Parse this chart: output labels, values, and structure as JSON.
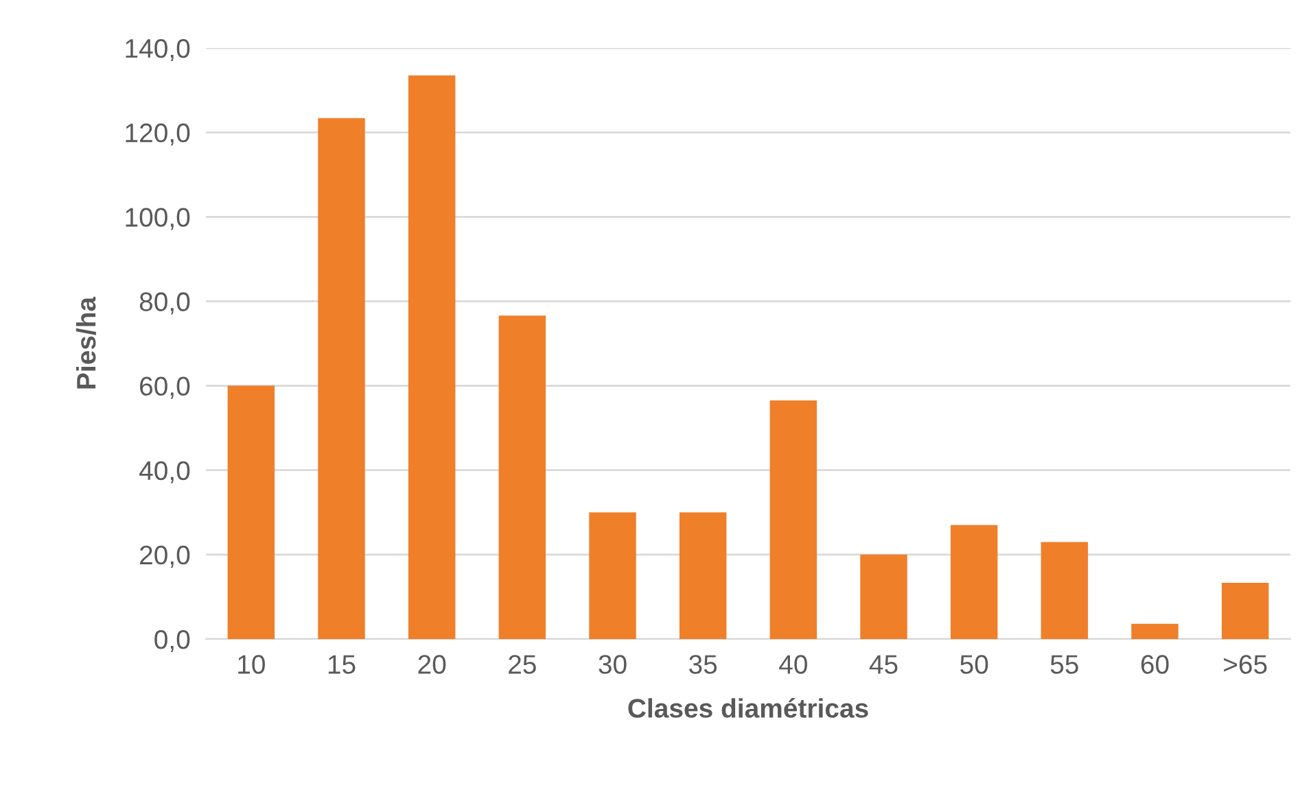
{
  "chart_data": {
    "type": "bar",
    "xlabel": "Clases diamétricas",
    "ylabel": "Pies/ha",
    "categories": [
      "10",
      "15",
      "20",
      "25",
      "30",
      "35",
      "40",
      "45",
      "50",
      "55",
      "60",
      ">65"
    ],
    "values": [
      60,
      123.4,
      133.5,
      76.6,
      30,
      30,
      56.5,
      20,
      27,
      23,
      3.6,
      13.3
    ],
    "color": "#f07f2a",
    "ylim": [
      0,
      140
    ],
    "yticks": [
      {
        "value": 0,
        "label": "0,0"
      },
      {
        "value": 20,
        "label": "20,0"
      },
      {
        "value": 40,
        "label": "40,0"
      },
      {
        "value": 60,
        "label": "60,0"
      },
      {
        "value": 80,
        "label": "80,0"
      },
      {
        "value": 100,
        "label": "100,0"
      },
      {
        "value": 120,
        "label": "120,0"
      },
      {
        "value": 140,
        "label": "140,0"
      }
    ],
    "grid": "y"
  }
}
